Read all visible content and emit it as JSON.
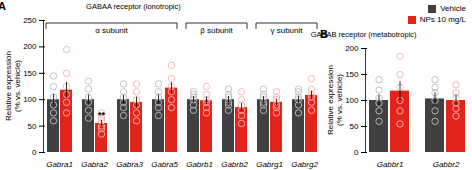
{
  "chart_data": [
    {
      "type": "bar",
      "panel_label": "A",
      "title": "GABAA receptor (ionotropic)",
      "ylabel": [
        "Relative expression",
        "(% vs. vehicle)"
      ],
      "categories": [
        "Gabra1",
        "Gabra2",
        "Gabra3",
        "Gabra5",
        "Gabrb1",
        "Gabrb2",
        "Gabrg1",
        "Gabrg2"
      ],
      "series": [
        {
          "name": "Vehicle",
          "color": "#404040",
          "values": [
            100,
            100,
            100,
            100,
            100,
            100,
            100,
            100
          ],
          "errors": [
            10,
            9,
            8,
            9,
            6,
            6,
            6,
            7
          ],
          "points": [
            [
              60,
              75,
              90,
              105,
              125,
              145
            ],
            [
              65,
              80,
              95,
              105,
              120,
              135
            ],
            [
              70,
              85,
              95,
              105,
              115,
              130
            ],
            [
              70,
              85,
              95,
              105,
              115,
              130
            ],
            [
              80,
              90,
              100,
              105,
              110,
              115
            ],
            [
              80,
              90,
              95,
              105,
              110,
              120
            ],
            [
              80,
              90,
              95,
              105,
              110,
              120
            ],
            [
              75,
              90,
              100,
              105,
              115,
              120
            ]
          ]
        },
        {
          "name": "NPs 10 mg/L",
          "color": "#e3241b",
          "values": [
            118,
            55,
            95,
            122,
            98,
            85,
            95,
            108
          ],
          "errors": [
            15,
            6,
            10,
            10,
            7,
            8,
            6,
            8
          ],
          "points": [
            [
              75,
              95,
              110,
              125,
              150,
              195
            ],
            [
              35,
              45,
              50,
              60,
              65,
              75
            ],
            [
              60,
              75,
              90,
              100,
              115,
              130
            ],
            [
              85,
              100,
              115,
              125,
              140,
              165
            ],
            [
              75,
              85,
              95,
              100,
              110,
              125
            ],
            [
              55,
              70,
              80,
              90,
              100,
              115
            ],
            [
              75,
              85,
              90,
              100,
              105,
              115
            ],
            [
              80,
              95,
              105,
              110,
              120,
              140
            ]
          ]
        }
      ],
      "groups": [
        {
          "label": "α subunit",
          "from": "Gabra1",
          "to": "Gabra5"
        },
        {
          "label": "β subunit",
          "from": "Gabrb1",
          "to": "Gabrb2"
        },
        {
          "label": "γ subunit",
          "from": "Gabrg1",
          "to": "Gabrg2"
        }
      ],
      "annotations": [
        {
          "category": "Gabra2",
          "series": "NPs 10 mg/L",
          "text": "**"
        }
      ],
      "ylim": [
        0,
        250
      ],
      "yticks": [
        0,
        50,
        100,
        150,
        200,
        250
      ]
    },
    {
      "type": "bar",
      "panel_label": "B",
      "title": "GABAB receptor (metabotropic)",
      "ylabel": [
        "Relative expression",
        "(% vs. vehicle)"
      ],
      "categories": [
        "Gabbr1",
        "Gabbr2"
      ],
      "series": [
        {
          "name": "Vehicle",
          "color": "#404040",
          "values": [
            100,
            103
          ],
          "errors": [
            10,
            12
          ],
          "points": [
            [
              60,
              80,
              95,
              105,
              120,
              140
            ],
            [
              60,
              80,
              100,
              115,
              125,
              140
            ]
          ]
        },
        {
          "name": "NPs 10 mg/L",
          "color": "#e3241b",
          "values": [
            118,
            100
          ],
          "errors": [
            18,
            10
          ],
          "points": [
            [
              55,
              80,
              100,
              125,
              150,
              185
            ],
            [
              70,
              85,
              95,
              105,
              115,
              130
            ]
          ]
        }
      ],
      "ylim": [
        0,
        200
      ],
      "yticks": [
        0,
        50,
        100,
        150,
        200
      ],
      "legend": "top-right"
    }
  ]
}
